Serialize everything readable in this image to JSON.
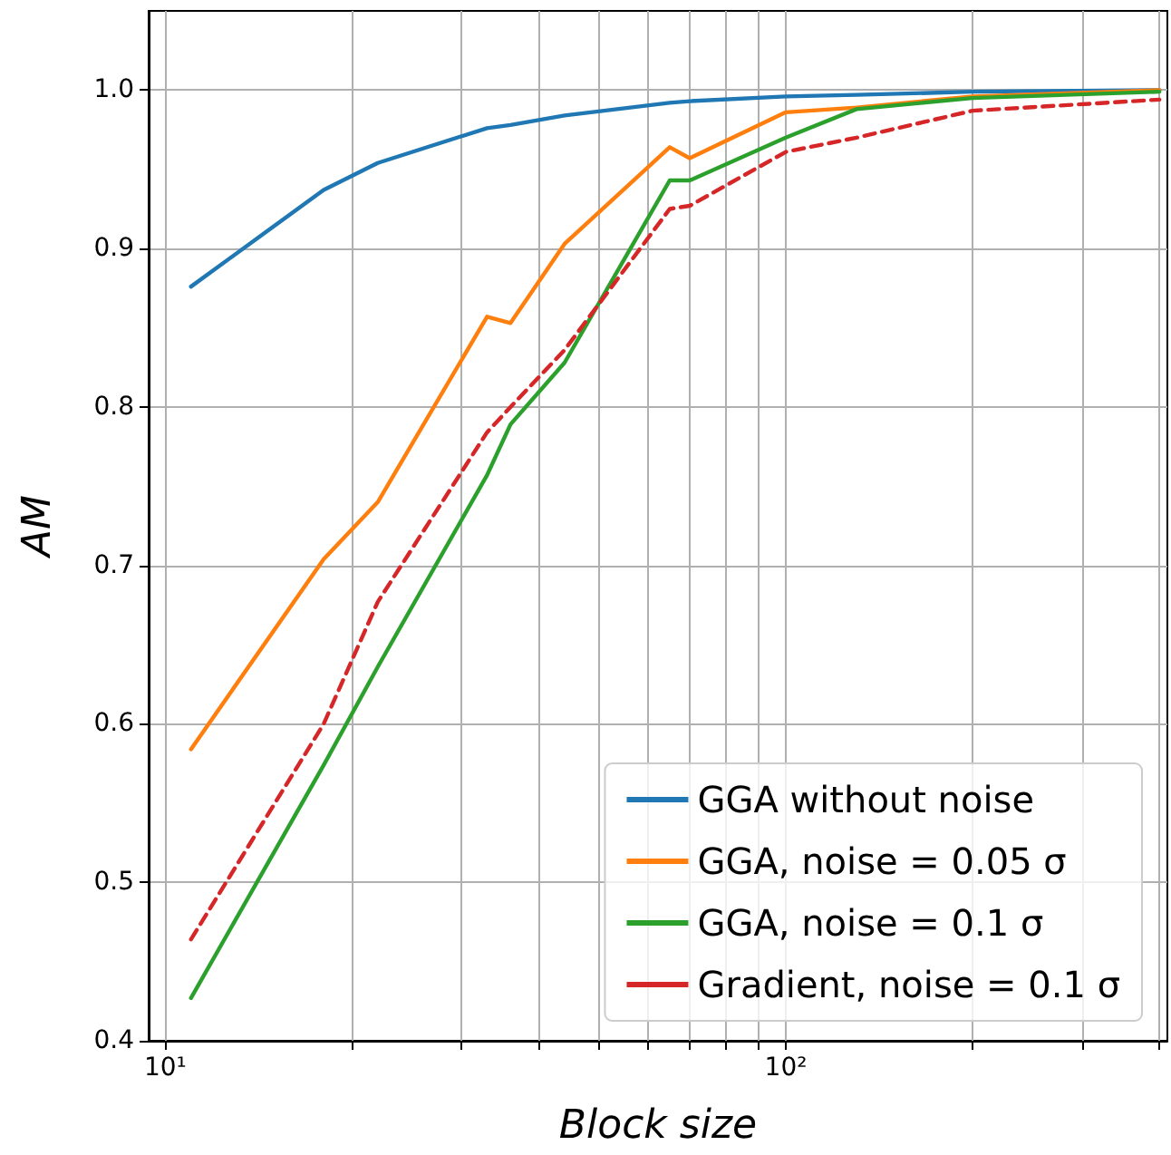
{
  "chart_data": {
    "type": "line",
    "xlabel": "Block size",
    "ylabel": "AM",
    "log": "x",
    "grid": true,
    "legend": "bottom right",
    "marker": "none",
    "xlim": [
      9.4,
      412
    ],
    "ylim": [
      0.4,
      1.05
    ],
    "xticks": [
      {
        "value": 10,
        "label": "10¹"
      },
      {
        "value": 20,
        "label": null
      },
      {
        "value": 30,
        "label": null
      },
      {
        "value": 40,
        "label": null
      },
      {
        "value": 50,
        "label": null
      },
      {
        "value": 60,
        "label": null
      },
      {
        "value": 70,
        "label": null
      },
      {
        "value": 80,
        "label": null
      },
      {
        "value": 90,
        "label": null
      },
      {
        "value": 100,
        "label": "10²"
      },
      {
        "value": 200,
        "label": null
      },
      {
        "value": 300,
        "label": null
      },
      {
        "value": 400,
        "label": null
      }
    ],
    "yticks": [
      0.4,
      0.5,
      0.6,
      0.7,
      0.8,
      0.9,
      {
        "value": 1.0,
        "label": "1.0"
      }
    ],
    "x": [
      11,
      18,
      22,
      33,
      36,
      44,
      65,
      70,
      100,
      130,
      200,
      400
    ],
    "series": [
      {
        "name": "GGA without noise",
        "color": "#1f77b4",
        "line_style": "solid",
        "values": [
          0.876,
          0.937,
          0.954,
          0.976,
          0.978,
          0.984,
          0.992,
          0.993,
          0.996,
          0.997,
          0.999,
          1.0
        ]
      },
      {
        "name": "GGA, noise = 0.05 σ",
        "color": "#ff7f0e",
        "line_style": "solid",
        "values": [
          0.584,
          0.704,
          0.74,
          0.857,
          0.853,
          0.903,
          0.964,
          0.957,
          0.986,
          0.989,
          0.996,
          1.0
        ]
      },
      {
        "name": "GGA, noise = 0.1 σ",
        "color": "#2ca02c",
        "line_style": "solid",
        "values": [
          0.427,
          0.574,
          0.636,
          0.757,
          0.789,
          0.828,
          0.943,
          0.943,
          0.97,
          0.988,
          0.995,
          0.999
        ]
      },
      {
        "name": "Gradient, noise = 0.1 σ",
        "color": "#d62728",
        "line_style": "dashed",
        "values": [
          0.464,
          0.6,
          0.677,
          0.784,
          0.8,
          0.836,
          0.925,
          0.927,
          0.961,
          0.97,
          0.987,
          0.994
        ]
      }
    ]
  }
}
